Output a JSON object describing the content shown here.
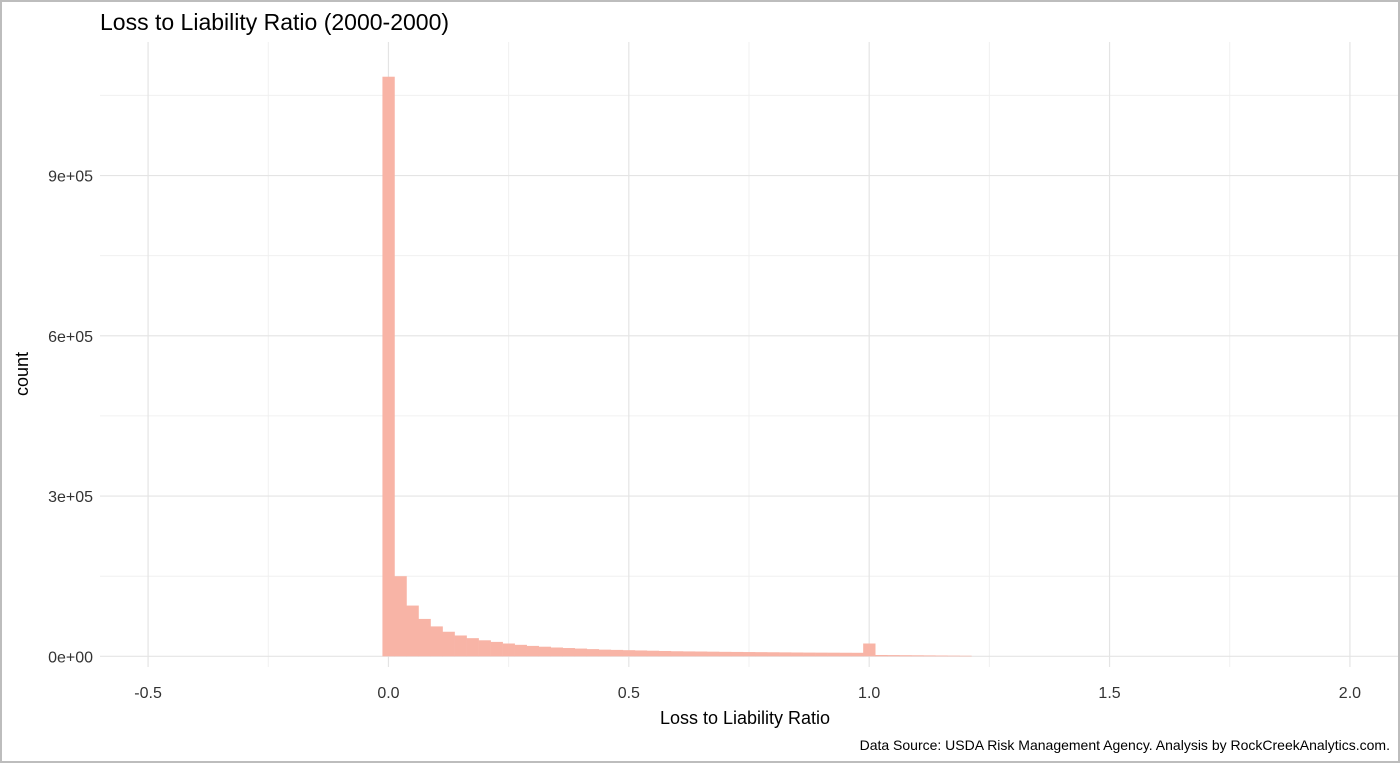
{
  "chart_data": {
    "type": "bar",
    "title": "Loss to Liability Ratio (2000-2000)",
    "xlabel": "Loss to Liability Ratio",
    "ylabel": "count",
    "caption": "Data Source: USDA Risk Management Agency.  Analysis by RockCreekAnalytics.com.",
    "xlim": [
      -0.6,
      2.1
    ],
    "ylim": [
      -20000,
      1150000
    ],
    "grid": true,
    "x_ticks": [
      {
        "value": -0.5,
        "label": "-0.5"
      },
      {
        "value": 0.0,
        "label": "0.0"
      },
      {
        "value": 0.5,
        "label": "0.5"
      },
      {
        "value": 1.0,
        "label": "1.0"
      },
      {
        "value": 1.5,
        "label": "1.5"
      },
      {
        "value": 2.0,
        "label": "2.0"
      }
    ],
    "y_ticks": [
      {
        "value": 0,
        "label": "0e+00"
      },
      {
        "value": 300000,
        "label": "3e+05"
      },
      {
        "value": 600000,
        "label": "6e+05"
      },
      {
        "value": 900000,
        "label": "9e+05"
      }
    ],
    "bar_color": "#f8b4a6",
    "bin_width": 0.025,
    "bin_start": -0.0125,
    "values": [
      1085000,
      150000,
      95000,
      70000,
      56000,
      46000,
      39000,
      34000,
      30000,
      27000,
      24000,
      21500,
      19500,
      18000,
      16500,
      15500,
      14500,
      13500,
      12500,
      12000,
      11500,
      11000,
      10500,
      10000,
      9500,
      9200,
      9000,
      8700,
      8400,
      8200,
      8000,
      7800,
      7600,
      7400,
      7200,
      7000,
      6900,
      6800,
      6700,
      6600,
      24000,
      2500,
      2300,
      2100,
      1900,
      1700,
      1500,
      1300,
      1100
    ]
  }
}
